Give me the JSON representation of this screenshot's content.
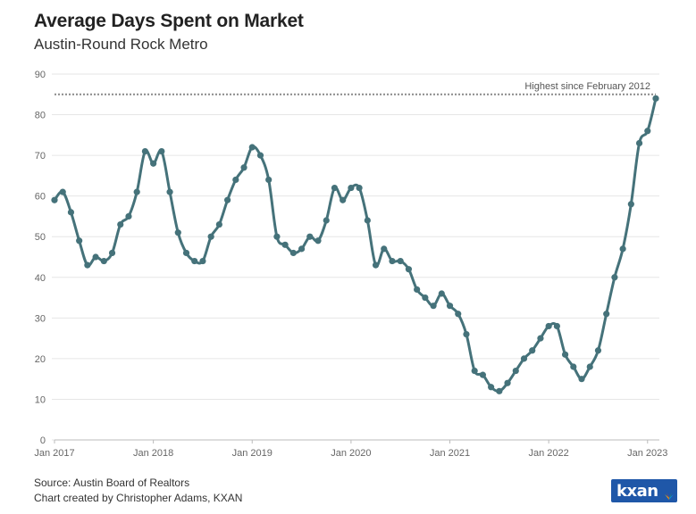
{
  "header": {
    "title": "Average Days Spent on Market",
    "subtitle": "Austin-Round Rock Metro"
  },
  "footer": {
    "source": "Source: Austin Board of Realtors",
    "credit": "Chart created by Christopher Adams, KXAN",
    "logo_text": "kxan"
  },
  "colors": {
    "line": "#45727a",
    "grid": "#e6e6e6",
    "reference": "#8a8a8a",
    "logo": "#1f57a8"
  },
  "chart_data": {
    "type": "line",
    "title": "Average Days Spent on Market",
    "subtitle": "Austin-Round Rock Metro",
    "ylim": [
      0,
      90
    ],
    "yticks": [
      0,
      10,
      20,
      30,
      40,
      50,
      60,
      70,
      80,
      90
    ],
    "grid": true,
    "x_start": "2017-01",
    "x_end": "2023-02",
    "xtick_labels": [
      "Jan 2017",
      "Jan 2018",
      "Jan 2019",
      "Jan 2020",
      "Jan 2021",
      "Jan 2022",
      "Jan 2023"
    ],
    "series": [
      {
        "values": [
          59,
          61,
          56,
          49,
          43,
          45,
          44,
          46,
          53,
          55,
          61,
          71,
          68,
          71,
          61,
          51,
          46,
          44,
          44,
          50,
          53,
          59,
          64,
          67,
          72,
          70,
          64,
          50,
          48,
          46,
          47,
          50,
          49,
          54,
          62,
          59,
          62,
          62,
          54,
          43,
          47,
          44,
          44,
          42,
          37,
          35,
          33,
          36,
          33,
          31,
          26,
          17,
          16,
          13,
          12,
          14,
          17,
          20,
          22,
          25,
          28,
          28,
          21,
          18,
          15,
          18,
          22,
          31,
          40,
          47,
          58,
          73,
          76,
          84
        ]
      }
    ],
    "reference_line": {
      "value": 85,
      "label": "Highest since February 2012"
    }
  }
}
